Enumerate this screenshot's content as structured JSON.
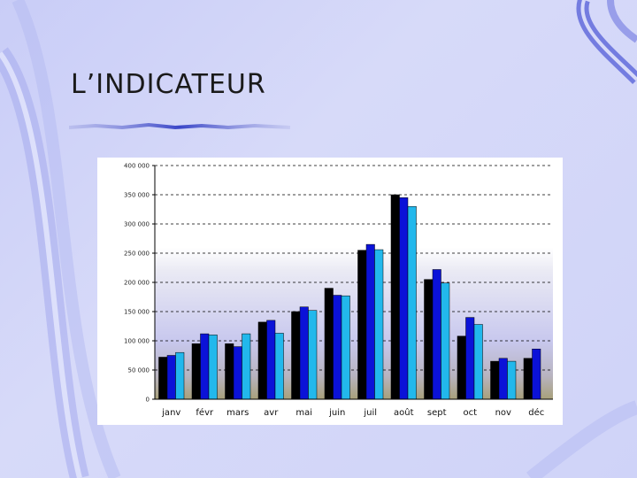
{
  "slide": {
    "title": "L’INDICATEUR"
  },
  "colors": {
    "series1": "#000000",
    "series2": "#0b12d8",
    "series3": "#22b8ec",
    "background": "#cfd3f8"
  },
  "chart_data": {
    "type": "bar",
    "title": "",
    "xlabel": "",
    "ylabel": "",
    "ylim": [
      0,
      400000
    ],
    "yticks": [
      0,
      50000,
      100000,
      150000,
      200000,
      250000,
      300000,
      350000,
      400000
    ],
    "ytick_labels": [
      "0",
      "50 000",
      "100 000",
      "150 000",
      "200 000",
      "250 000",
      "300 000",
      "350 000",
      "400 000"
    ],
    "grid": "horizontal-dashed",
    "categories": [
      "janv",
      "févr",
      "mars",
      "avr",
      "mai",
      "juin",
      "juil",
      "août",
      "sept",
      "oct",
      "nov",
      "déc"
    ],
    "series": [
      {
        "values": [
          72000,
          95000,
          95000,
          132000,
          150000,
          190000,
          255000,
          350000,
          205000,
          108000,
          65000,
          70000
        ]
      },
      {
        "values": [
          75000,
          112000,
          90000,
          135000,
          158000,
          178000,
          265000,
          345000,
          222000,
          140000,
          70000,
          86000
        ]
      },
      {
        "values": [
          80000,
          110000,
          112000,
          113000,
          152000,
          177000,
          256000,
          330000,
          199000,
          128000,
          65000,
          null
        ]
      }
    ]
  }
}
